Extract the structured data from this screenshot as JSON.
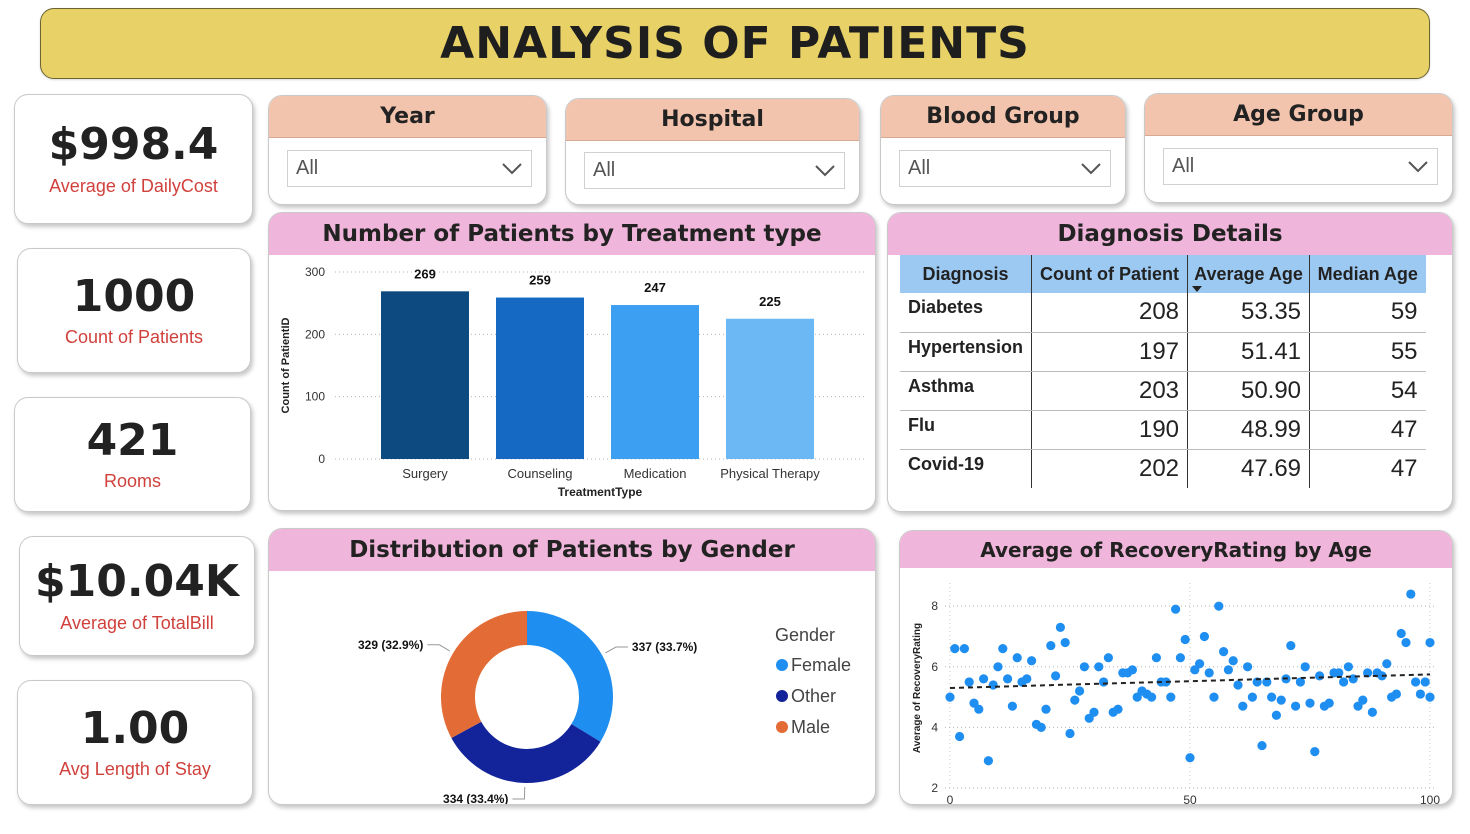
{
  "title": "ANALYSIS OF PATIENTS",
  "kpis": [
    {
      "value": "$998.4",
      "label": "Average of DailyCost"
    },
    {
      "value": "1000",
      "label": "Count of Patients"
    },
    {
      "value": "421",
      "label": "Rooms"
    },
    {
      "value": "$10.04K",
      "label": "Average of TotalBill"
    },
    {
      "value": "1.00",
      "label": "Avg Length of Stay"
    }
  ],
  "slicers": [
    {
      "title": "Year",
      "value": "All"
    },
    {
      "title": "Hospital",
      "value": "All"
    },
    {
      "title": "Blood Group",
      "value": "All"
    },
    {
      "title": "Age Group",
      "value": "All"
    }
  ],
  "icons": {
    "dropdown": "chevron-down-icon",
    "sort": "sort-descending-icon"
  },
  "colors": {
    "banner": "#e8d268",
    "slicer_header": "#f3c4ad",
    "panel_header": "#f0b5da",
    "kpi_label": "#d0413c",
    "table_header": "#9cc9f2"
  },
  "diagnosis": {
    "title": "Diagnosis Details",
    "columns": [
      "Diagnosis",
      "Count of Patient",
      "Average Age",
      "Median Age"
    ],
    "rows": [
      [
        "Diabetes",
        "208",
        "53.35",
        "59"
      ],
      [
        "Hypertension",
        "197",
        "51.41",
        "55"
      ],
      [
        "Asthma",
        "203",
        "50.90",
        "54"
      ],
      [
        "Flu",
        "190",
        "48.99",
        "47"
      ],
      [
        "Covid-19",
        "202",
        "47.69",
        "47"
      ]
    ]
  },
  "chart_data": [
    {
      "type": "bar",
      "title": "Number of Patients by Treatment type",
      "xlabel": "TreatmentType",
      "ylabel": "Count of PatientID",
      "categories": [
        "Surgery",
        "Counseling",
        "Medication",
        "Physical Therapy"
      ],
      "values": [
        269,
        259,
        247,
        225
      ],
      "colors": [
        "#0c4a80",
        "#1569c2",
        "#3d9ff1",
        "#6cb8f5"
      ],
      "yticks": [
        "0",
        "100",
        "200",
        "300"
      ],
      "ylim": [
        0,
        300
      ],
      "grid": true
    },
    {
      "type": "pie",
      "title": "Distribution of Patients by Gender",
      "legend_title": "Gender",
      "legend_position": "right",
      "series": [
        {
          "name": "Female",
          "value": 337,
          "label": "337 (33.7%)",
          "color": "#1f8ef1"
        },
        {
          "name": "Other",
          "value": 334,
          "label": "334 (33.4%)",
          "color": "#13239a"
        },
        {
          "name": "Male",
          "value": 329,
          "label": "329 (32.9%)",
          "color": "#e36b35"
        }
      ]
    },
    {
      "type": "scatter",
      "title": "Average of RecoveryRating by Age",
      "xlabel": "Age",
      "ylabel": "Average of RecoveryRating",
      "xticks": [
        "0",
        "50",
        "100"
      ],
      "yticks": [
        "2",
        "4",
        "6",
        "8"
      ],
      "xlim": [
        0,
        100
      ],
      "ylim": [
        2,
        8.6
      ],
      "trend": [
        5.3,
        5.75
      ],
      "color": "#1f8ef1",
      "points": [
        [
          0,
          5.0
        ],
        [
          1,
          6.6
        ],
        [
          2,
          3.7
        ],
        [
          3,
          6.6
        ],
        [
          4,
          5.5
        ],
        [
          5,
          4.8
        ],
        [
          6,
          4.6
        ],
        [
          7,
          5.6
        ],
        [
          8,
          2.9
        ],
        [
          9,
          5.4
        ],
        [
          10,
          6.0
        ],
        [
          11,
          6.6
        ],
        [
          12,
          5.6
        ],
        [
          13,
          4.7
        ],
        [
          14,
          6.3
        ],
        [
          15,
          5.5
        ],
        [
          16,
          5.6
        ],
        [
          17,
          6.2
        ],
        [
          18,
          4.1
        ],
        [
          19,
          4.0
        ],
        [
          20,
          4.6
        ],
        [
          21,
          6.7
        ],
        [
          22,
          5.7
        ],
        [
          23,
          7.3
        ],
        [
          24,
          6.8
        ],
        [
          25,
          3.8
        ],
        [
          26,
          4.9
        ],
        [
          27,
          5.2
        ],
        [
          28,
          6.0
        ],
        [
          29,
          4.3
        ],
        [
          30,
          4.5
        ],
        [
          31,
          6.0
        ],
        [
          32,
          5.5
        ],
        [
          33,
          6.3
        ],
        [
          34,
          4.5
        ],
        [
          35,
          4.6
        ],
        [
          36,
          5.8
        ],
        [
          37,
          5.8
        ],
        [
          38,
          5.9
        ],
        [
          39,
          5.0
        ],
        [
          40,
          5.2
        ],
        [
          41,
          5.1
        ],
        [
          42,
          5.0
        ],
        [
          43,
          6.3
        ],
        [
          44,
          5.5
        ],
        [
          45,
          5.5
        ],
        [
          46,
          5.0
        ],
        [
          47,
          7.9
        ],
        [
          48,
          6.3
        ],
        [
          49,
          6.9
        ],
        [
          50,
          3.0
        ],
        [
          51,
          5.9
        ],
        [
          52,
          6.1
        ],
        [
          53,
          7.0
        ],
        [
          54,
          5.8
        ],
        [
          55,
          5.0
        ],
        [
          56,
          8.0
        ],
        [
          57,
          6.5
        ],
        [
          58,
          5.9
        ],
        [
          59,
          6.2
        ],
        [
          60,
          5.4
        ],
        [
          61,
          4.7
        ],
        [
          62,
          6.0
        ],
        [
          63,
          5.0
        ],
        [
          64,
          5.5
        ],
        [
          65,
          3.4
        ],
        [
          66,
          5.5
        ],
        [
          67,
          5.0
        ],
        [
          68,
          4.4
        ],
        [
          69,
          4.9
        ],
        [
          70,
          5.6
        ],
        [
          71,
          6.7
        ],
        [
          72,
          4.7
        ],
        [
          73,
          5.5
        ],
        [
          74,
          6.0
        ],
        [
          75,
          4.8
        ],
        [
          76,
          3.2
        ],
        [
          77,
          5.7
        ],
        [
          78,
          4.7
        ],
        [
          79,
          4.8
        ],
        [
          80,
          5.8
        ],
        [
          81,
          5.8
        ],
        [
          82,
          5.5
        ],
        [
          83,
          6.0
        ],
        [
          84,
          5.6
        ],
        [
          85,
          4.7
        ],
        [
          86,
          4.9
        ],
        [
          87,
          5.8
        ],
        [
          88,
          4.5
        ],
        [
          89,
          5.8
        ],
        [
          90,
          5.7
        ],
        [
          91,
          6.1
        ],
        [
          92,
          5.0
        ],
        [
          93,
          5.1
        ],
        [
          94,
          7.1
        ],
        [
          95,
          6.8
        ],
        [
          96,
          8.4
        ],
        [
          97,
          5.5
        ],
        [
          98,
          5.1
        ],
        [
          99,
          5.5
        ],
        [
          100,
          6.8
        ],
        [
          100,
          5.0
        ]
      ]
    }
  ]
}
